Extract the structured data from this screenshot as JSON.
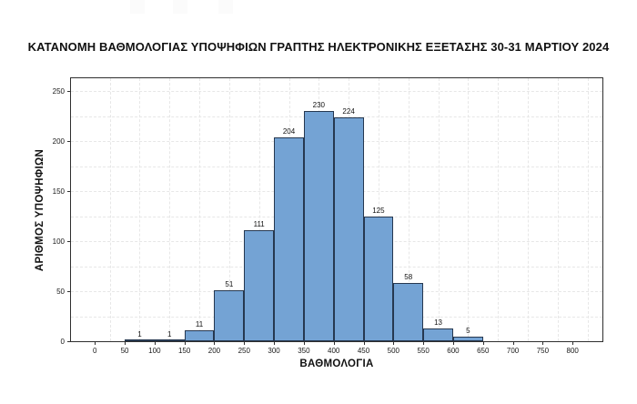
{
  "chart_data": {
    "type": "bar",
    "subtype": "histogram",
    "title": "ΚΑΤΑΝΟΜΗ ΒΑΘΜΟΛΟΓΙΑΣ ΥΠΟΨΗΦΙΩΝ ΓΡΑΠΤΗΣ ΗΛΕΚΤΡΟΝΙΚΗΣ ΕΞΕΤΑΣΗΣ 30-31 ΜΑΡΤΙΟΥ 2024",
    "xlabel": "ΒΑΘΜΟΛΟΓΙΑ",
    "ylabel": "ΑΡΙΘΜΟΣ ΥΠΟΨΗΦΙΩΝ",
    "bin_width": 50,
    "bin_edges": [
      50,
      100,
      150,
      200,
      250,
      300,
      350,
      400,
      450,
      500,
      550,
      600,
      650
    ],
    "values": [
      1,
      1,
      11,
      51,
      111,
      204,
      230,
      224,
      125,
      58,
      13,
      5
    ],
    "x_ticks": [
      0,
      50,
      100,
      150,
      200,
      250,
      300,
      350,
      400,
      450,
      500,
      550,
      600,
      650,
      700,
      750,
      800
    ],
    "y_ticks": [
      0,
      50,
      100,
      150,
      200,
      250
    ],
    "xlim": [
      -40,
      850
    ],
    "ylim": [
      0,
      263
    ],
    "grid": {
      "style": "dashed",
      "color": "#e7e7e7",
      "x_lines": [
        25,
        75,
        125,
        175,
        225,
        275,
        325,
        375,
        425,
        475,
        525,
        575,
        625,
        675,
        725,
        775,
        825
      ],
      "y_lines": [
        25,
        50,
        75,
        100,
        125,
        150,
        175,
        200,
        225,
        250
      ]
    },
    "legend": null,
    "colors": {
      "bar_fill": "#74a3d4",
      "bar_stroke": "#263850",
      "axis": "#2f2f2f",
      "text": "#111111",
      "background": "#ffffff"
    }
  }
}
